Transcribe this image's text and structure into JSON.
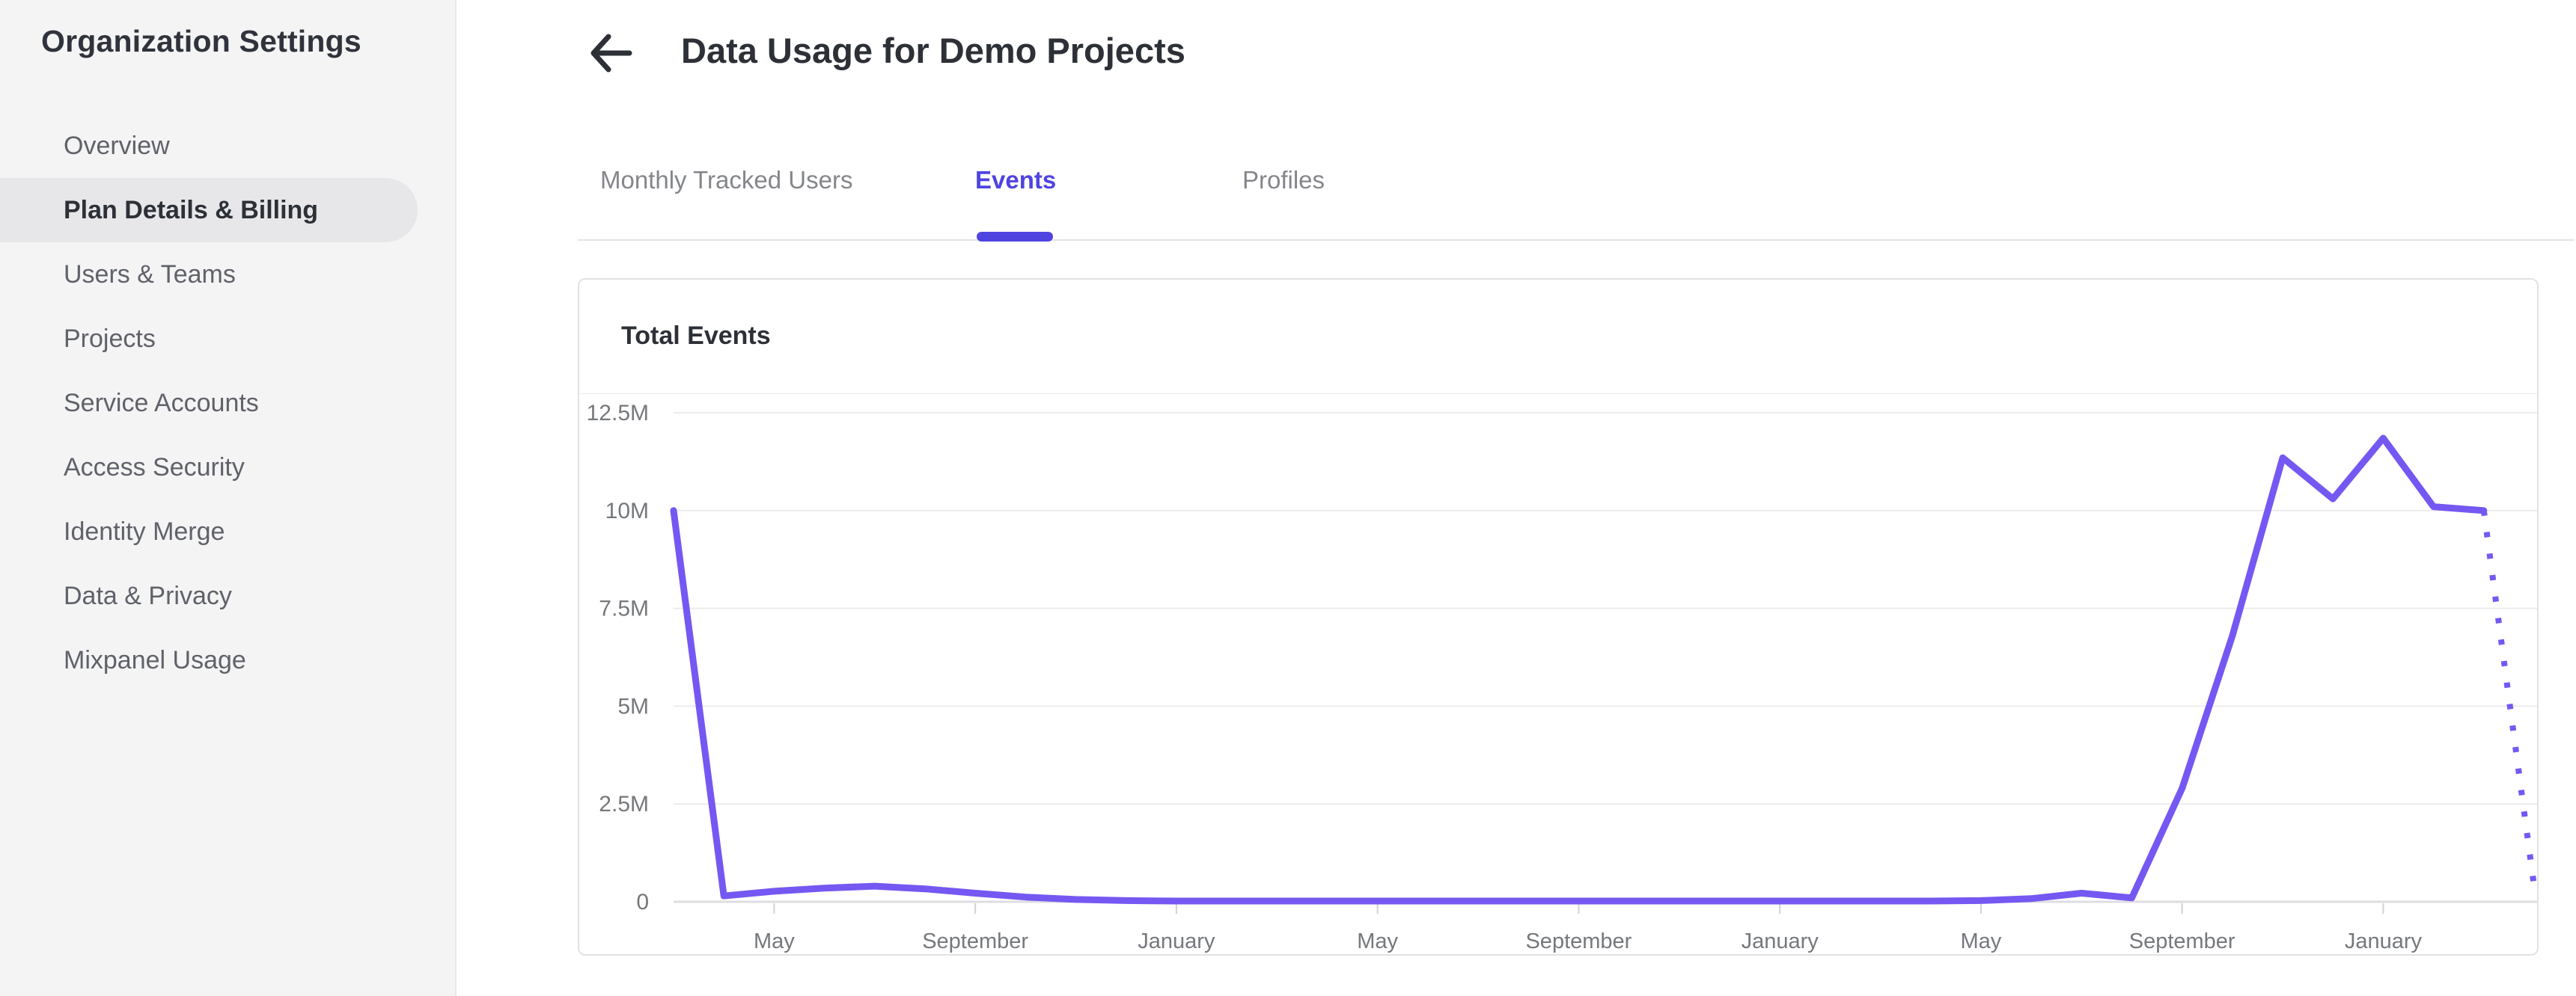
{
  "sidebar": {
    "title": "Organization Settings",
    "items": [
      {
        "label": "Overview",
        "selected": false
      },
      {
        "label": "Plan Details & Billing",
        "selected": true
      },
      {
        "label": "Users & Teams",
        "selected": false
      },
      {
        "label": "Projects",
        "selected": false
      },
      {
        "label": "Service Accounts",
        "selected": false
      },
      {
        "label": "Access Security",
        "selected": false
      },
      {
        "label": "Identity Merge",
        "selected": false
      },
      {
        "label": "Data & Privacy",
        "selected": false
      },
      {
        "label": "Mixpanel Usage",
        "selected": false
      }
    ]
  },
  "header": {
    "title": "Data Usage for Demo Projects",
    "back_icon": "arrow-left-icon"
  },
  "tabs": {
    "items": [
      {
        "label": "Monthly Tracked Users",
        "active": false
      },
      {
        "label": "Events",
        "active": true
      },
      {
        "label": "Profiles",
        "active": false
      }
    ]
  },
  "card": {
    "title": "Total Events"
  },
  "colors": {
    "accent": "#4f44e0",
    "line": "#7558f2",
    "sidebar_bg": "#f4f4f5",
    "selected_pill": "#e7e7e9",
    "text_dark": "#2d3037",
    "text_gray": "#5f6268",
    "axis_text": "#75787c",
    "grid": "#ececee"
  },
  "chart_data": {
    "type": "line",
    "title": "Total Events",
    "ylabel": "Total Events",
    "y_ticks": [
      "12.5M",
      "10M",
      "7.5M",
      "5M",
      "2.5M",
      "0"
    ],
    "y_tick_values_millions": [
      12.5,
      10,
      7.5,
      5,
      2.5,
      0
    ],
    "ylim_millions": [
      0,
      12.5
    ],
    "grid": "horizontal-only",
    "legend": "none",
    "x_tick_labels": [
      "May",
      "September",
      "January",
      "May",
      "September",
      "January",
      "May",
      "September",
      "January"
    ],
    "x_tick_month_indices": [
      2,
      6,
      10,
      14,
      18,
      22,
      26,
      30,
      34
    ],
    "x_start_note": "monthly points; index 0 is two months before the first May tick",
    "values_millions": [
      10,
      0.15,
      0.27,
      0.35,
      0.4,
      0.33,
      0.22,
      0.12,
      0.06,
      0.03,
      0.02,
      0.02,
      0.02,
      0.02,
      0.02,
      0.02,
      0.02,
      0.02,
      0.02,
      0.02,
      0.02,
      0.02,
      0.02,
      0.02,
      0.02,
      0.02,
      0.03,
      0.08,
      0.22,
      0.1,
      2.9,
      6.8,
      11.35,
      10.3,
      11.85,
      10.1,
      10.0,
      0.4
    ],
    "dotted_from_index": 36,
    "line_color": "#7558f2",
    "grid_color": "#ececee",
    "axis_color": "#dedee1",
    "tick_color": "#d2d2d5",
    "label_color": "#75787c"
  }
}
